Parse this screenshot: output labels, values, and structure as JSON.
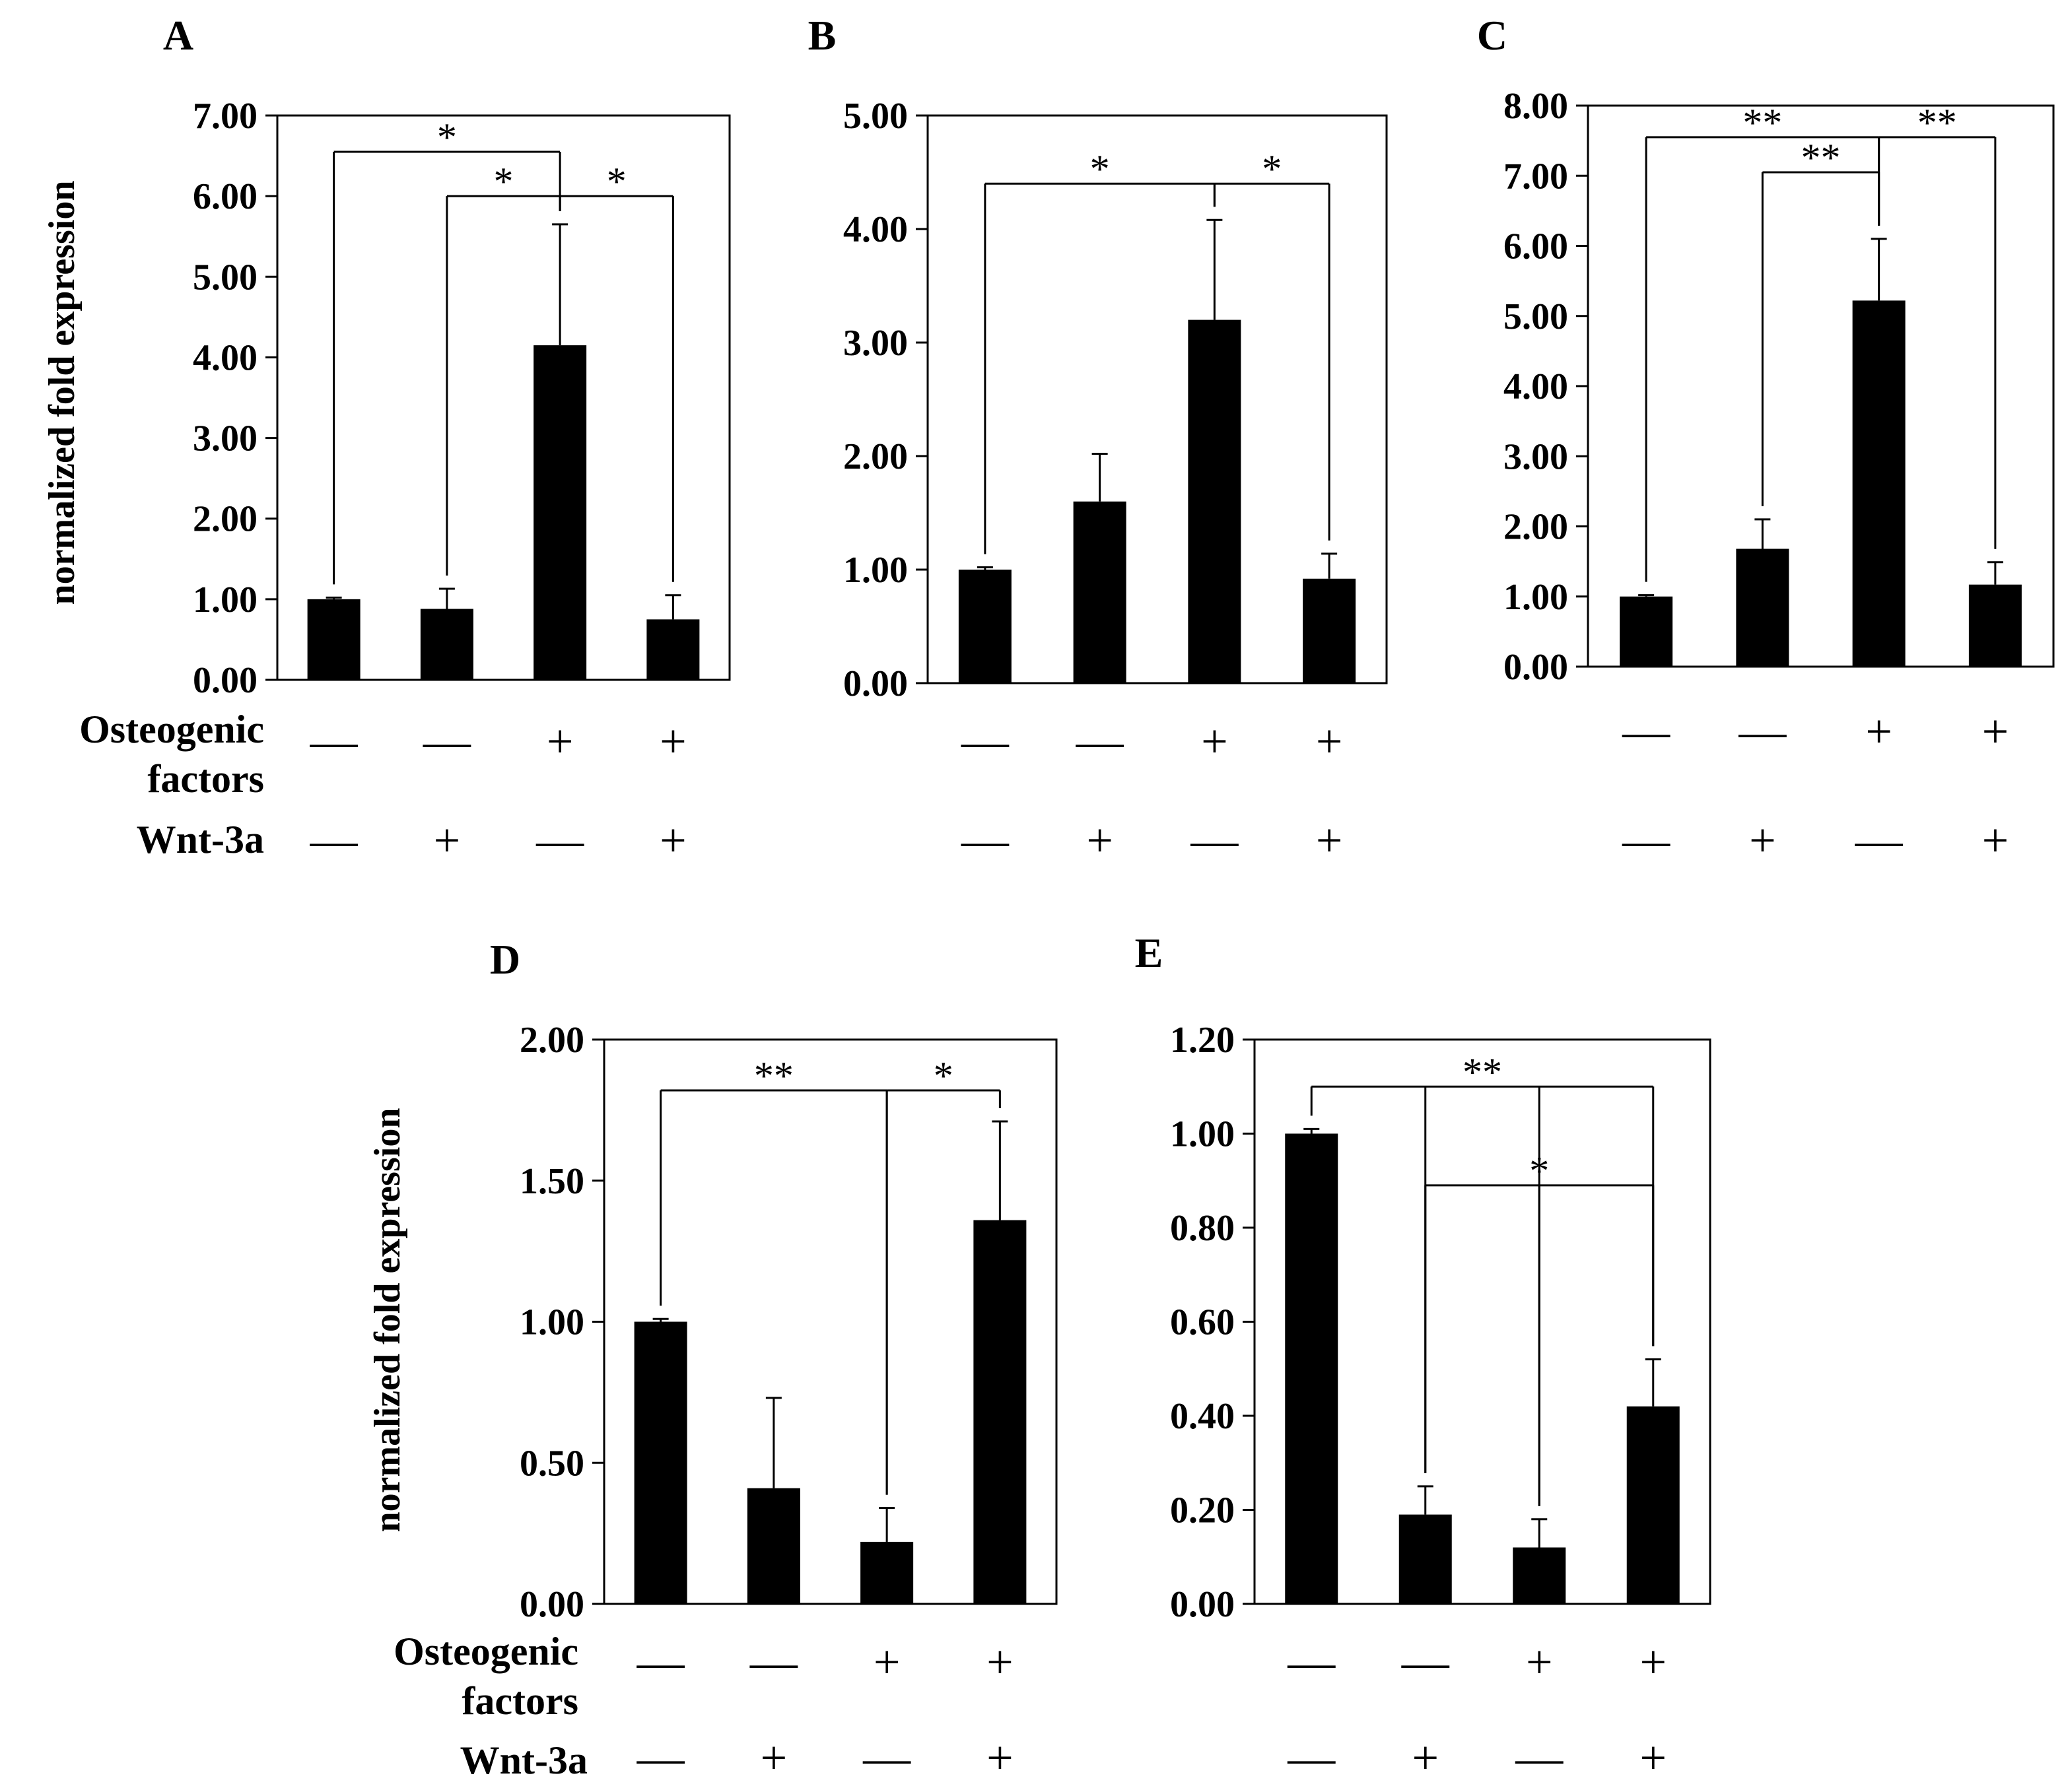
{
  "chart_data": {
    "row_labels": {
      "osteogenic_line1": "Osteogenic",
      "osteogenic_line2": "factors",
      "wnt": "Wnt-3a"
    },
    "y_axis_label": "normalized  fold expression",
    "treatments": {
      "osteogenic": [
        "—",
        "—",
        "+",
        "+"
      ],
      "wnt3a": [
        "—",
        "+",
        "—",
        "+"
      ]
    },
    "panels": [
      {
        "type": "bar",
        "label": "A",
        "ylim": [
          0,
          7
        ],
        "yticks": [
          "0.00",
          "1.00",
          "2.00",
          "3.00",
          "4.00",
          "5.00",
          "6.00",
          "7.00"
        ],
        "values": [
          1.0,
          0.88,
          4.15,
          0.75
        ],
        "errors": [
          0.02,
          0.25,
          1.5,
          0.3
        ],
        "significance": [
          {
            "from": 0,
            "to": 2,
            "label": "*",
            "level": 6.55
          },
          {
            "from": 1,
            "to": 2,
            "label": "*",
            "level": 6.0
          },
          {
            "from": 2,
            "to": 3,
            "label": "*",
            "level": 6.0
          }
        ]
      },
      {
        "type": "bar",
        "label": "B",
        "ylim": [
          0,
          5
        ],
        "yticks": [
          "0.00",
          "1.00",
          "2.00",
          "3.00",
          "4.00",
          "5.00"
        ],
        "values": [
          1.0,
          1.6,
          3.2,
          0.92
        ],
        "errors": [
          0.02,
          0.42,
          0.88,
          0.22
        ],
        "significance": [
          {
            "from": 0,
            "to": 2,
            "label": "*",
            "level": 4.4
          },
          {
            "from": 2,
            "to": 3,
            "label": "*",
            "level": 4.4
          }
        ]
      },
      {
        "type": "bar",
        "label": "C",
        "ylim": [
          0,
          8
        ],
        "yticks": [
          "0.00",
          "1.00",
          "2.00",
          "3.00",
          "4.00",
          "5.00",
          "6.00",
          "7.00",
          "8.00"
        ],
        "values": [
          1.0,
          1.68,
          5.22,
          1.17
        ],
        "errors": [
          0.02,
          0.42,
          0.88,
          0.32
        ],
        "significance": [
          {
            "from": 0,
            "to": 2,
            "label": "**",
            "level": 7.55
          },
          {
            "from": 1,
            "to": 2,
            "label": "**",
            "level": 7.05
          },
          {
            "from": 2,
            "to": 3,
            "label": "**",
            "level": 7.55
          }
        ]
      },
      {
        "type": "bar",
        "label": "D",
        "ylim": [
          0,
          2
        ],
        "yticks": [
          "0.00",
          "0.50",
          "1.00",
          "1.50",
          "2.00"
        ],
        "values": [
          1.0,
          0.41,
          0.22,
          1.36
        ],
        "errors": [
          0.01,
          0.32,
          0.12,
          0.35
        ],
        "significance": [
          {
            "from": 0,
            "to": 2,
            "label": "**",
            "level": 1.82
          },
          {
            "from": 2,
            "to": 3,
            "label": "*",
            "level": 1.82
          }
        ]
      },
      {
        "type": "bar",
        "label": "E",
        "ylim": [
          0,
          1.2
        ],
        "yticks": [
          "0.00",
          "0.20",
          "0.40",
          "0.60",
          "0.80",
          "1.00",
          "1.20"
        ],
        "values": [
          1.0,
          0.19,
          0.12,
          0.42
        ],
        "errors": [
          0.01,
          0.06,
          0.06,
          0.1
        ],
        "significance": [
          {
            "from": 0,
            "to": [
              1,
              2,
              3
            ],
            "label": "**",
            "level": 1.1
          },
          {
            "from": [
              1,
              2
            ],
            "to": 3,
            "label": "*",
            "level": 0.89
          }
        ]
      }
    ]
  }
}
